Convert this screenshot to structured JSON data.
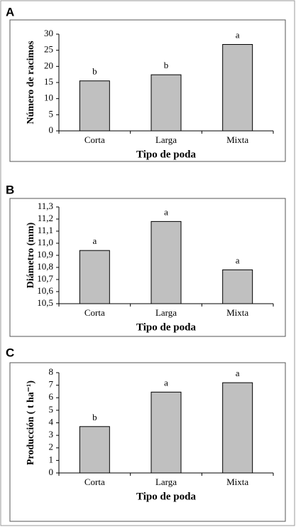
{
  "chart_data": [
    {
      "type": "bar",
      "panel": "A",
      "ylabel": "Número de racimos",
      "xlabel": "Tipo de poda",
      "categories": [
        "Corta",
        "Larga",
        "Mixta"
      ],
      "values": [
        15.5,
        17.4,
        26.8
      ],
      "annotations": [
        "b",
        "b",
        "a"
      ],
      "color": "#c0c0c0",
      "ylim": [
        0,
        30
      ],
      "yticks": [
        0,
        5,
        10,
        15,
        20,
        25,
        30
      ]
    },
    {
      "type": "bar",
      "panel": "B",
      "ylabel": "Diámetro (mm)",
      "xlabel": "Tipo de poda",
      "categories": [
        "Corta",
        "Larga",
        "Mixta"
      ],
      "values": [
        10.94,
        11.18,
        10.78
      ],
      "annotations": [
        "a",
        "a",
        "a"
      ],
      "color": "#c0c0c0",
      "ylim": [
        10.5,
        11.3
      ],
      "yticks": [
        {
          "value": 10.5,
          "label": "10,5"
        },
        {
          "value": 10.6,
          "label": "10,6"
        },
        {
          "value": 10.7,
          "label": "10,7"
        },
        {
          "value": 10.8,
          "label": "10,8"
        },
        {
          "value": 10.9,
          "label": "10,9"
        },
        {
          "value": 11.0,
          "label": "11,0"
        },
        {
          "value": 11.1,
          "label": "11,1"
        },
        {
          "value": 11.2,
          "label": "11,2"
        },
        {
          "value": 11.3,
          "label": "11,3"
        }
      ]
    },
    {
      "type": "bar",
      "panel": "C",
      "ylabel": "Producción ( t ha⁻¹)",
      "xlabel": "Tipo de poda",
      "categories": [
        "Corta",
        "Larga",
        "Mixta"
      ],
      "values": [
        3.7,
        6.45,
        7.2
      ],
      "annotations": [
        "b",
        "a",
        "a"
      ],
      "color": "#c0c0c0",
      "ylim": [
        0,
        8
      ],
      "yticks": [
        0,
        1,
        2,
        3,
        4,
        5,
        6,
        7,
        8
      ]
    }
  ]
}
